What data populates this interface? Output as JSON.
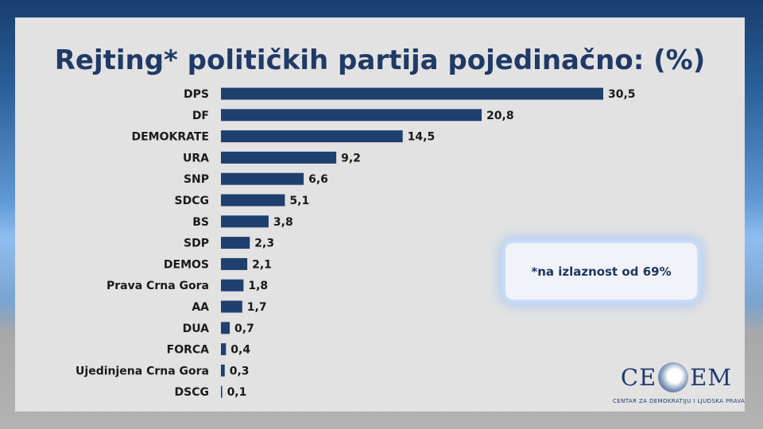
{
  "chart_data": {
    "type": "bar",
    "orientation": "horizontal",
    "title": "Rejting* političkih partija pojedinačno: (%)",
    "categories": [
      "DPS",
      "DF",
      "DEMOKRATE",
      "URA",
      "SNP",
      "SDCG",
      "BS",
      "SDP",
      "DEMOS",
      "Prava Crna Gora",
      "AA",
      "DUA",
      "FORCA",
      "Ujedinjena Crna Gora",
      "DSCG"
    ],
    "values": [
      30.5,
      20.8,
      14.5,
      9.2,
      6.6,
      5.1,
      3.8,
      2.3,
      2.1,
      1.8,
      1.7,
      0.7,
      0.4,
      0.3,
      0.1
    ],
    "value_labels": [
      "30,5",
      "20,8",
      "14,5",
      "9,2",
      "6,6",
      "5,1",
      "3,8",
      "2,3",
      "2,1",
      "1,8",
      "1,7",
      "0,7",
      "0,4",
      "0,3",
      "0,1"
    ],
    "bar_color": "#1f3f6f",
    "grid": false,
    "legend": "none"
  },
  "note": {
    "text": "*na izlaznost od 69%"
  },
  "logo": {
    "left": "CE",
    "right": "EM",
    "caption": "CENTAR ZA DEMOKRATIJU I LJUDSKA PRAVA"
  },
  "colors": {
    "title": "#1f3a66",
    "panel": "#e2e2e2",
    "bar": "#1f3f6f"
  }
}
